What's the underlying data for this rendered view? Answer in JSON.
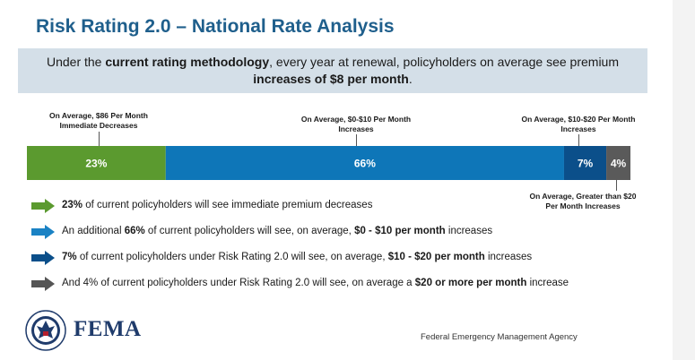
{
  "title": "Risk Rating 2.0 – National Rate Analysis",
  "summary": {
    "part1": "Under the ",
    "bold1": "current rating methodology",
    "part2": ", every year at renewal, policyholders on average see premium",
    "bold2": "increases of $8 per month",
    "part3": "."
  },
  "chart_data": {
    "type": "bar",
    "orientation": "horizontal-stacked",
    "categories": [
      "Immediate Decreases",
      "$0-$10 Per Month Increases",
      "$10-$20 Per Month Increases",
      "Greater than $20 Per Month Increases"
    ],
    "values": [
      23,
      66,
      7,
      4
    ],
    "value_labels": [
      "23%",
      "66%",
      "7%",
      "4%"
    ],
    "annotations": [
      "On Average, $86 Per Month\nImmediate Decreases",
      "On Average, $0-$10 Per Month\nIncreases",
      "On Average, $10-$20 Per Month\nIncreases",
      "On Average, Greater than $20\nPer Month Increases"
    ],
    "colors": [
      "#5b9a2f",
      "#0e76b8",
      "#0b4f8a",
      "#5a5a5a"
    ]
  },
  "bullets": [
    {
      "color": "#5b9a2f",
      "parts": [
        {
          "b": "23%"
        },
        {
          "t": " of current policyholders will see immediate premium decreases"
        }
      ]
    },
    {
      "color": "#1a82c4",
      "parts": [
        {
          "t": "An additional "
        },
        {
          "b": "66%"
        },
        {
          "t": " of current policyholders will see, on average, "
        },
        {
          "b": "$0 - $10 per month"
        },
        {
          "t": " increases"
        }
      ]
    },
    {
      "color": "#0b4f8a",
      "parts": [
        {
          "b": "7%"
        },
        {
          "t": " of current policyholders under Risk Rating 2.0 will see, on average, "
        },
        {
          "b": "$10 - $20 per month"
        },
        {
          "t": " increases"
        }
      ]
    },
    {
      "color": "#555555",
      "parts": [
        {
          "t": "And 4% of current policyholders under Risk Rating 2.0 will see, on average a "
        },
        {
          "b": "$20 or more per month"
        },
        {
          "t": " increase"
        }
      ]
    }
  ],
  "footer": {
    "logo_text": "FEMA",
    "seal_text": "DEPARTMENT OF HOMELAND SECURITY",
    "agency": "Federal Emergency Management Agency"
  }
}
